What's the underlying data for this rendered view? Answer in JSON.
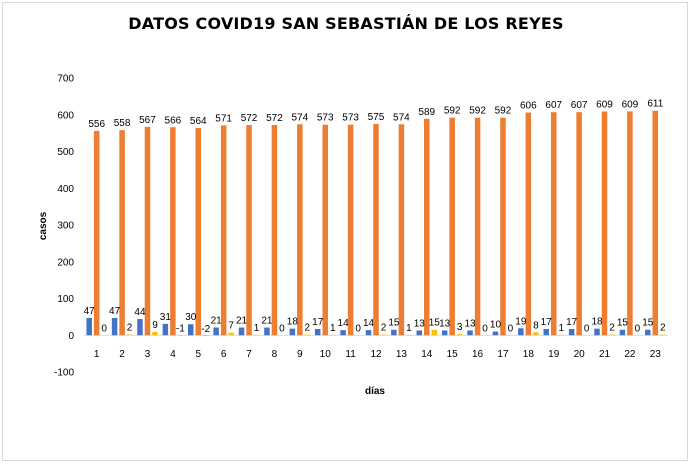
{
  "chart_data": {
    "type": "bar",
    "title": "DATOS COVID19 SAN SEBASTIÁN DE LOS REYES",
    "xlabel": "días",
    "ylabel": "casos",
    "ylim": [
      -100,
      700
    ],
    "yticks": [
      -100,
      0,
      100,
      200,
      300,
      400,
      500,
      600,
      700
    ],
    "grid": false,
    "legend": "none",
    "categories": [
      "1",
      "2",
      "3",
      "4",
      "5",
      "6",
      "7",
      "8",
      "9",
      "10",
      "11",
      "12",
      "13",
      "14",
      "15",
      "16",
      "17",
      "18",
      "19",
      "20",
      "21",
      "22",
      "23"
    ],
    "series": [
      {
        "color": "#4472c4",
        "values": [
          47,
          47,
          44,
          31,
          30,
          21,
          21,
          21,
          18,
          17,
          14,
          14,
          15,
          13,
          13,
          13,
          10,
          19,
          17,
          17,
          18,
          15,
          15
        ]
      },
      {
        "color": "#ed7d31",
        "values": [
          556,
          558,
          567,
          566,
          564,
          571,
          572,
          572,
          574,
          573,
          573,
          575,
          574,
          589,
          592,
          592,
          592,
          606,
          607,
          607,
          609,
          609,
          611
        ]
      },
      {
        "color": "#ffc000",
        "values": [
          0,
          2,
          9,
          -1,
          -2,
          7,
          1,
          0,
          2,
          1,
          0,
          2,
          1,
          15,
          3,
          0,
          0,
          8,
          1,
          0,
          2,
          0,
          2
        ]
      }
    ]
  }
}
